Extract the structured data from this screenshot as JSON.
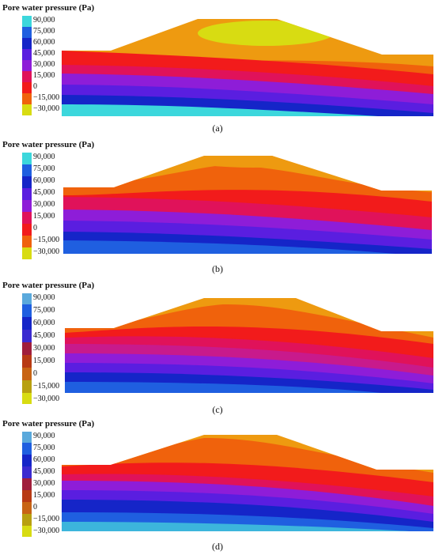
{
  "colors": {
    "scale": [
      "#3cd7dc",
      "#1f5fe0",
      "#1525c8",
      "#5a1ee0",
      "#8e1dd8",
      "#e0125a",
      "#f21b1b",
      "#f0620c",
      "#ee9a10",
      "#d8dc12"
    ]
  },
  "panels": [
    {
      "legend_title": "Pore water pressure  (Pa)",
      "caption": "(a)",
      "ticks": [
        "90,000",
        "75,000",
        "60,000",
        "45,000",
        "30,000",
        "15,000",
        "0",
        "−15,000",
        "−30,000"
      ]
    },
    {
      "legend_title": "Pore water pressure  (Pa)",
      "caption": "(b)",
      "ticks": [
        "90,000",
        "75,000",
        "60,000",
        "45,000",
        "30,000",
        "15,000",
        "0",
        "−15,000",
        "−30,000"
      ]
    },
    {
      "legend_title": "Pore water pressure  (Pa)",
      "caption": "(c)",
      "ticks": [
        "90,000",
        "75,000",
        "60,000",
        "45,000",
        "30,000",
        "15,000",
        "0",
        "−15,000",
        "−30,000"
      ]
    },
    {
      "legend_title": "Pore water pressure  (Pa)",
      "caption": "(d)",
      "ticks": [
        "90,000",
        "75,000",
        "60,000",
        "45,000",
        "30,000",
        "15,000",
        "0",
        "−15,000",
        "−30,000"
      ]
    }
  ]
}
